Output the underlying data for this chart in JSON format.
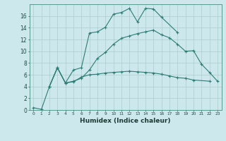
{
  "xlabel": "Humidex (Indice chaleur)",
  "background_color": "#cce8ec",
  "line_color": "#2d7d74",
  "grid_color": "#aacccc",
  "xlim": [
    -0.5,
    23.5
  ],
  "ylim": [
    0,
    18
  ],
  "xticks": [
    0,
    1,
    2,
    3,
    4,
    5,
    6,
    7,
    8,
    9,
    10,
    11,
    12,
    13,
    14,
    15,
    16,
    17,
    18,
    19,
    20,
    21,
    22,
    23
  ],
  "yticks": [
    0,
    2,
    4,
    6,
    8,
    10,
    12,
    14,
    16
  ],
  "s1x": [
    0,
    1,
    2,
    3,
    4,
    5,
    6,
    7,
    8,
    9,
    10,
    11,
    12,
    13,
    14,
    15,
    16,
    18
  ],
  "s1y": [
    0.4,
    0.1,
    4.0,
    7.2,
    4.6,
    6.8,
    7.2,
    13.1,
    13.3,
    14.1,
    16.3,
    16.6,
    17.3,
    15.0,
    17.3,
    17.2,
    15.8,
    13.2
  ],
  "s2x": [
    2,
    3,
    4,
    5,
    6,
    7,
    8,
    9,
    10,
    11,
    12,
    13,
    14,
    15,
    16,
    17,
    18,
    19,
    20,
    22
  ],
  "s2y": [
    4.0,
    7.2,
    4.6,
    4.8,
    5.6,
    6.0,
    6.1,
    6.3,
    6.4,
    6.5,
    6.6,
    6.5,
    6.4,
    6.3,
    6.1,
    5.8,
    5.5,
    5.4,
    5.1,
    4.9
  ],
  "s3x": [
    2,
    3,
    4,
    5,
    6,
    7,
    8,
    9,
    10,
    11,
    12,
    13,
    14,
    15,
    16,
    17,
    18,
    19,
    20,
    21,
    22,
    23
  ],
  "s3y": [
    4.0,
    7.2,
    4.6,
    4.9,
    5.4,
    6.8,
    8.8,
    9.8,
    11.2,
    12.2,
    12.6,
    13.0,
    13.3,
    13.6,
    12.8,
    12.3,
    11.2,
    10.0,
    10.1,
    7.8,
    6.4,
    4.9
  ]
}
